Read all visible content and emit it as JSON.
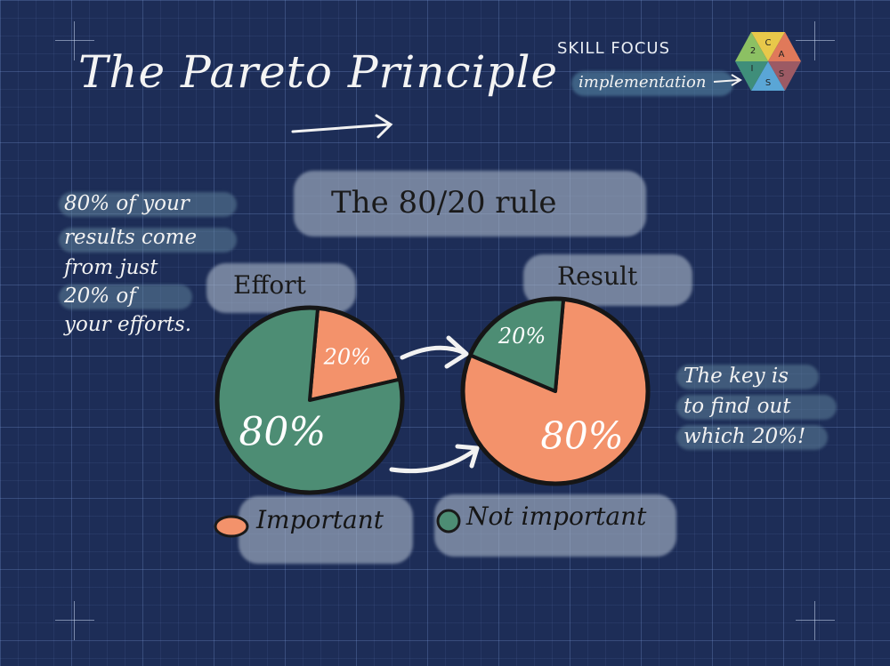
{
  "title": "The Pareto Principle",
  "skill_focus": {
    "title": "SKILL FOCUS",
    "value": "implementation",
    "logo_letters": [
      "C",
      "A",
      "S",
      "S",
      "I",
      "2"
    ]
  },
  "rule_heading": "The 80/20 rule",
  "left_note": [
    "80% of your",
    "results come",
    "from just",
    "20% of",
    "your efforts."
  ],
  "right_note": [
    "The key is",
    "to find out",
    "which 20%!"
  ],
  "legend": [
    {
      "label": "Important",
      "color": "#f3926b"
    },
    {
      "label": "Not important",
      "color": "#4d8d74"
    }
  ],
  "colors": {
    "background": "#1d2d57",
    "important": "#f3926b",
    "not_important": "#4d8d74"
  },
  "chart_data": [
    {
      "type": "pie",
      "title": "Effort",
      "categories": [
        "Important",
        "Not important"
      ],
      "values": [
        20,
        80
      ],
      "labels": [
        "20%",
        "80%"
      ]
    },
    {
      "type": "pie",
      "title": "Result",
      "categories": [
        "Important",
        "Not important"
      ],
      "values": [
        80,
        20
      ],
      "labels": [
        "80%",
        "20%"
      ]
    }
  ]
}
